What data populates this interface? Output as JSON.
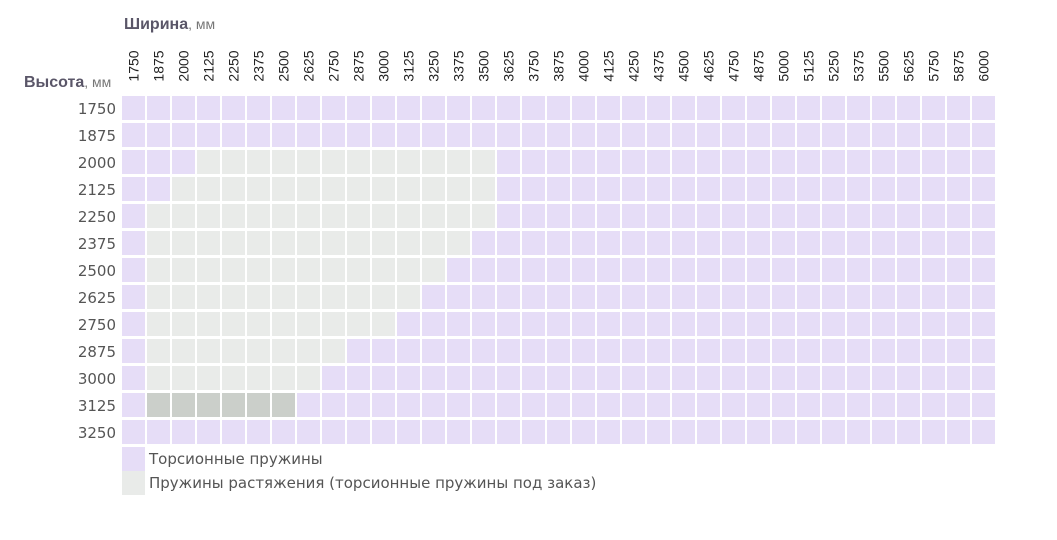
{
  "chart_data": {
    "type": "heatmap",
    "xlabel": "Ширина",
    "xlabel_unit": ", мм",
    "ylabel": "Высота",
    "ylabel_unit": ", мм",
    "x": [
      1750,
      1875,
      2000,
      2125,
      2250,
      2375,
      2500,
      2625,
      2750,
      2875,
      3000,
      3125,
      3250,
      3375,
      3500,
      3625,
      3750,
      3875,
      4000,
      4125,
      4250,
      4375,
      4500,
      4625,
      4750,
      4875,
      5000,
      5125,
      5250,
      5375,
      5500,
      5625,
      5750,
      5875,
      6000
    ],
    "y": [
      1750,
      1875,
      2000,
      2125,
      2250,
      2375,
      2500,
      2625,
      2750,
      2875,
      3000,
      3125,
      3250
    ],
    "extension_spring_ranges": [
      {
        "height": 2000,
        "widths": [
          2125,
          3500
        ]
      },
      {
        "height": 2125,
        "widths": [
          2000,
          3500
        ]
      },
      {
        "height": 2250,
        "widths": [
          1875,
          3500
        ]
      },
      {
        "height": 2375,
        "widths": [
          1875,
          3375
        ]
      },
      {
        "height": 2500,
        "widths": [
          1875,
          3250
        ]
      },
      {
        "height": 2625,
        "widths": [
          1875,
          3125
        ]
      },
      {
        "height": 2750,
        "widths": [
          1875,
          3000
        ]
      },
      {
        "height": 2875,
        "widths": [
          1875,
          2750
        ]
      },
      {
        "height": 3000,
        "widths": [
          1875,
          2625
        ]
      },
      {
        "height": 3125,
        "widths": [
          1875,
          2500
        ]
      }
    ],
    "legend": [
      {
        "key": "torsion",
        "label": "Торсионные пружины",
        "color": "#e6ddf7"
      },
      {
        "key": "extension",
        "label": "Пружины растяжения (торсионные пружины под заказ)",
        "color": "#e9ebe9"
      }
    ],
    "colors": {
      "torsion": "#e6ddf7",
      "extension": "#e9ebe9",
      "extension_dark": "#cbcfca",
      "text_title": "#5a5668"
    }
  }
}
